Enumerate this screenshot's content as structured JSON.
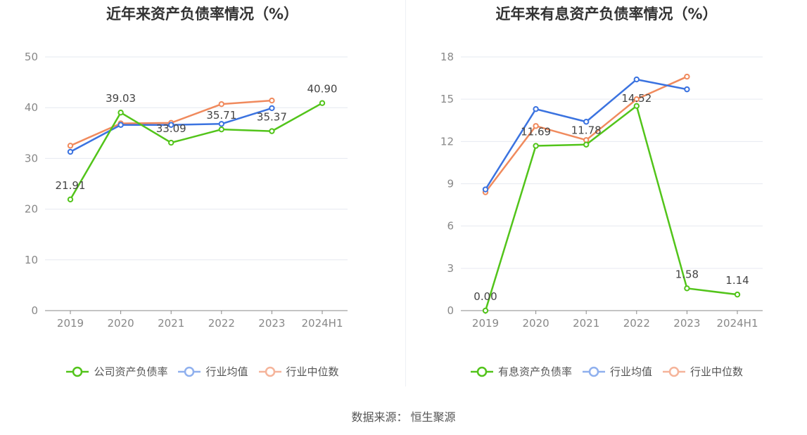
{
  "source": {
    "label": "数据来源：",
    "value": "恒生聚源"
  },
  "chart_data": [
    {
      "type": "line",
      "title": "近年来资产负债率情况（%）",
      "categories": [
        "2019",
        "2020",
        "2021",
        "2022",
        "2023",
        "2024H1"
      ],
      "ylim": [
        0,
        50
      ],
      "yticks": [
        0,
        10,
        20,
        30,
        40,
        50
      ],
      "grid": true,
      "legend_position": "bottom",
      "series": [
        {
          "name": "公司资产负债率",
          "color": "#52c41a",
          "labeled": true,
          "values": [
            21.91,
            39.03,
            33.09,
            35.71,
            35.37,
            40.9
          ],
          "labels": [
            "21.91",
            "39.03",
            "33.09",
            "35.71",
            "35.37",
            "40.90"
          ]
        },
        {
          "name": "行业均值",
          "color": "#3b73e0",
          "labeled": false,
          "values": [
            31.3,
            36.6,
            36.6,
            36.8,
            39.9,
            null
          ]
        },
        {
          "name": "行业中位数",
          "color": "#f08a5d",
          "labeled": false,
          "values": [
            32.5,
            36.9,
            37.0,
            40.7,
            41.4,
            null
          ]
        }
      ]
    },
    {
      "type": "line",
      "title": "近年来有息资产负债率情况（%）",
      "categories": [
        "2019",
        "2020",
        "2021",
        "2022",
        "2023",
        "2024H1"
      ],
      "ylim": [
        0,
        18
      ],
      "yticks": [
        0,
        3,
        6,
        9,
        12,
        15,
        18
      ],
      "grid": true,
      "legend_position": "bottom",
      "series": [
        {
          "name": "有息资产负债率",
          "color": "#52c41a",
          "labeled": true,
          "values": [
            0.0,
            11.69,
            11.78,
            14.52,
            1.58,
            1.14
          ],
          "labels": [
            "0.00",
            "11.69",
            "11.78",
            "14.52",
            "1.58",
            "1.14"
          ]
        },
        {
          "name": "行业均值",
          "color": "#3b73e0",
          "labeled": false,
          "values": [
            8.6,
            14.3,
            13.4,
            16.4,
            15.7,
            null
          ]
        },
        {
          "name": "行业中位数",
          "color": "#f08a5d",
          "labeled": false,
          "values": [
            8.4,
            13.1,
            12.1,
            15.0,
            16.6,
            null
          ]
        }
      ]
    }
  ]
}
